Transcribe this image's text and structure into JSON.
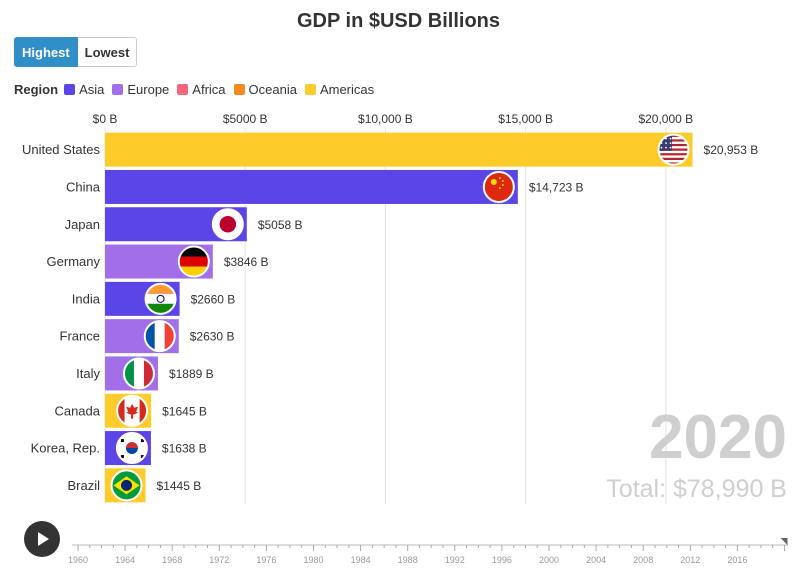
{
  "title": "GDP in $USD Billions",
  "toggle": {
    "highest": "Highest",
    "lowest": "Lowest"
  },
  "legend": {
    "title": "Region",
    "items": [
      {
        "label": "Asia",
        "color": "#5b45e6"
      },
      {
        "label": "Europe",
        "color": "#a36fe8"
      },
      {
        "label": "Africa",
        "color": "#f2677f"
      },
      {
        "label": "Oceania",
        "color": "#f58a1f"
      },
      {
        "label": "Americas",
        "color": "#fdcb2a"
      }
    ]
  },
  "chart_data": {
    "type": "bar",
    "orientation": "horizontal",
    "title": "GDP in $USD Billions",
    "categories": [
      "United States",
      "China",
      "Japan",
      "Germany",
      "India",
      "France",
      "Italy",
      "Canada",
      "Korea, Rep.",
      "Brazil"
    ],
    "values": [
      20953,
      14723,
      5058,
      3846,
      2660,
      2630,
      1889,
      1645,
      1638,
      1445
    ],
    "value_labels": [
      "$20,953 B",
      "$14,723 B",
      "$5058 B",
      "$3846 B",
      "$2660 B",
      "$2630 B",
      "$1889 B",
      "$1645 B",
      "$1638 B",
      "$1445 B"
    ],
    "regions": [
      "Americas",
      "Asia",
      "Asia",
      "Europe",
      "Asia",
      "Europe",
      "Europe",
      "Americas",
      "Asia",
      "Americas"
    ],
    "flags": [
      "flag-us-icon",
      "flag-china-icon",
      "flag-japan-icon",
      "flag-germany-icon",
      "flag-india-icon",
      "flag-france-icon",
      "flag-italy-icon",
      "flag-canada-icon",
      "flag-korea-icon",
      "flag-brazil-icon"
    ],
    "xlim": [
      0,
      21000
    ],
    "xticks": [
      0,
      5000,
      10000,
      15000,
      20000
    ],
    "xtick_labels": [
      "$0 B",
      "$5000 B",
      "$10,000 B",
      "$15,000 B",
      "$20,000 B"
    ],
    "axis_position": "top",
    "grid": true
  },
  "year": "2020",
  "total": "Total: $78,990 B",
  "timeline": {
    "labels": [
      "1960",
      "1964",
      "1968",
      "1972",
      "1976",
      "1980",
      "1984",
      "1988",
      "1992",
      "1996",
      "2000",
      "2004",
      "2008",
      "2012",
      "2016"
    ],
    "start": 1960,
    "end": 2020,
    "current": 2020
  }
}
